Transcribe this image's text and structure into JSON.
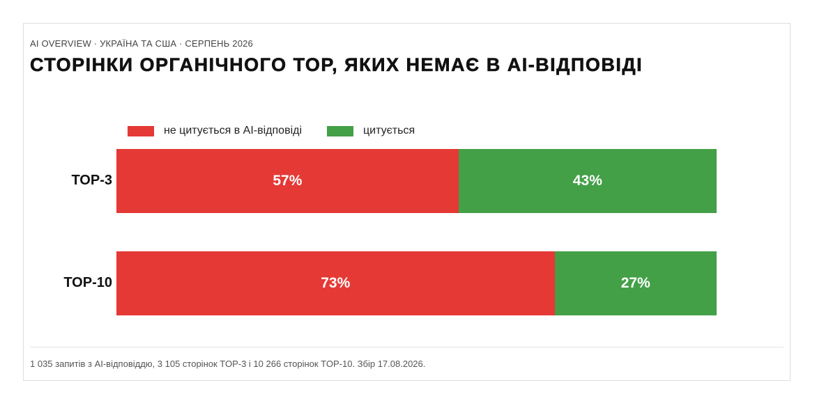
{
  "header": {
    "kicker": "AI OVERVIEW · УКРАЇНА ТА США · СЕРПЕНЬ 2026",
    "title": "СТОРІНКИ ОРГАНІЧНОГО ТОР, ЯКИХ НЕМАЄ В AI-ВІДПОВІДІ"
  },
  "legend": {
    "not_cited": "не цитується в AI-відповіді",
    "cited": "цитується"
  },
  "colors": {
    "not_cited": "#e53935",
    "cited": "#43a047"
  },
  "chart_data": {
    "type": "bar",
    "orientation": "horizontal",
    "stacked": true,
    "normalized_percent": true,
    "categories": [
      "TOP-3",
      "TOP-10"
    ],
    "series": [
      {
        "name": "не цитується в AI-відповіді",
        "values": [
          57,
          73
        ],
        "labels": [
          "57%",
          "73%"
        ]
      },
      {
        "name": "цитується",
        "values": [
          43,
          27
        ],
        "labels": [
          "43%",
          "27%"
        ]
      }
    ],
    "xlim": [
      0,
      100
    ],
    "legend_position": "top-left",
    "grid": false
  },
  "footnote": "1 035 запитів з AI-відповіддю, 3 105 сторінок TOP-3 і 10 266 сторінок TOP-10.  Збір 17.08.2026."
}
